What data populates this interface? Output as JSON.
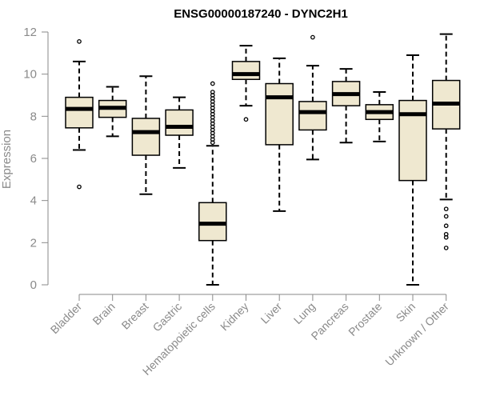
{
  "chart_data": {
    "type": "boxplot",
    "title": "ENSG00000187240 - DYNC2H1",
    "ylabel": "Expression",
    "xlabel": "",
    "ylim": [
      0,
      12
    ],
    "yticks": [
      0,
      2,
      4,
      6,
      8,
      10,
      12
    ],
    "grid": false,
    "box_fill": "#efe8d0",
    "categories": [
      "Bladder",
      "Brain",
      "Breast",
      "Gastric",
      "Hematopoietic cells",
      "Kidney",
      "Liver",
      "Lung",
      "Pancreas",
      "Prostate",
      "Skin",
      "Unknown / Other"
    ],
    "boxes": [
      {
        "q1": 7.45,
        "median": 8.35,
        "q3": 8.9,
        "whisker_low": 6.4,
        "whisker_high": 10.6,
        "outliers": [
          11.55,
          4.65
        ]
      },
      {
        "q1": 7.95,
        "median": 8.4,
        "q3": 8.75,
        "whisker_low": 7.05,
        "whisker_high": 9.4,
        "outliers": []
      },
      {
        "q1": 6.15,
        "median": 7.25,
        "q3": 7.9,
        "whisker_low": 4.3,
        "whisker_high": 9.9,
        "outliers": []
      },
      {
        "q1": 7.1,
        "median": 7.5,
        "q3": 8.3,
        "whisker_low": 5.55,
        "whisker_high": 8.9,
        "outliers": []
      },
      {
        "q1": 2.1,
        "median": 2.9,
        "q3": 3.9,
        "whisker_low": 0.0,
        "whisker_high": 6.6,
        "outliers": [
          6.75,
          6.9,
          7.05,
          7.2,
          7.35,
          7.5,
          7.65,
          7.8,
          7.95,
          8.1,
          8.25,
          8.4,
          8.55,
          8.7,
          8.85,
          9.0,
          9.15,
          9.55
        ]
      },
      {
        "q1": 9.75,
        "median": 10.0,
        "q3": 10.6,
        "whisker_low": 8.5,
        "whisker_high": 11.35,
        "outliers": [
          7.85
        ]
      },
      {
        "q1": 6.65,
        "median": 8.9,
        "q3": 9.55,
        "whisker_low": 3.5,
        "whisker_high": 10.75,
        "outliers": []
      },
      {
        "q1": 7.35,
        "median": 8.2,
        "q3": 8.7,
        "whisker_low": 5.95,
        "whisker_high": 10.4,
        "outliers": [
          11.75
        ]
      },
      {
        "q1": 8.5,
        "median": 9.05,
        "q3": 9.65,
        "whisker_low": 6.75,
        "whisker_high": 10.25,
        "outliers": []
      },
      {
        "q1": 7.85,
        "median": 8.2,
        "q3": 8.55,
        "whisker_low": 6.8,
        "whisker_high": 9.15,
        "outliers": []
      },
      {
        "q1": 4.95,
        "median": 8.1,
        "q3": 8.75,
        "whisker_low": 0.0,
        "whisker_high": 10.9,
        "outliers": []
      },
      {
        "q1": 7.4,
        "median": 8.6,
        "q3": 9.7,
        "whisker_low": 4.05,
        "whisker_high": 11.9,
        "outliers": [
          3.6,
          3.25,
          2.8,
          2.4,
          2.25,
          1.75
        ]
      }
    ]
  }
}
